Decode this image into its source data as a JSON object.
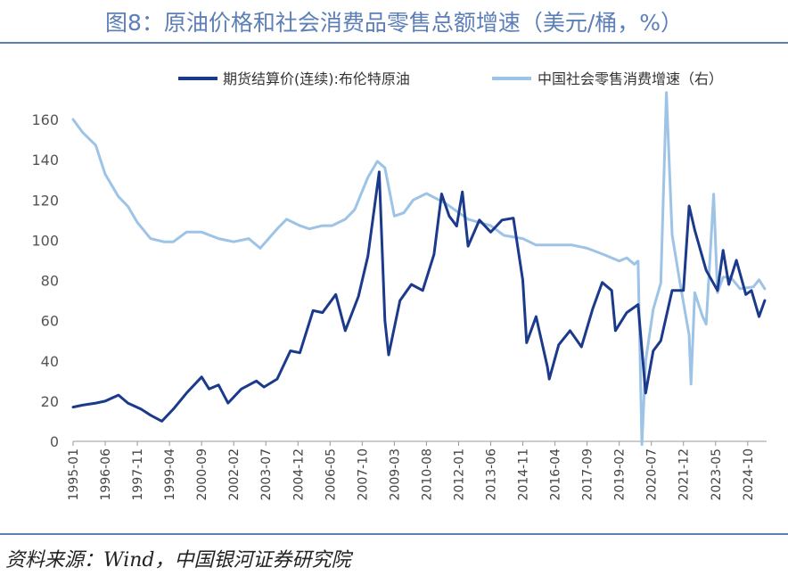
{
  "title": "图8：原油价格和社会消费品零售总额增速（美元/桶，%）",
  "source": "资料来源：Wind，中国银河证券研究院",
  "chart_data": {
    "type": "line",
    "title": "图8：原油价格和社会消费品零售总额增速（美元/桶，%）",
    "ylim": [
      0,
      160
    ],
    "yticks": [
      0,
      20,
      40,
      60,
      80,
      100,
      120,
      140,
      160
    ],
    "xticks": [
      "1995-01",
      "1996-06",
      "1997-11",
      "1999-04",
      "2000-09",
      "2002-02",
      "2003-07",
      "2004-12",
      "2006-05",
      "2007-10",
      "2009-03",
      "2010-08",
      "2012-01",
      "2013-06",
      "2014-11",
      "2016-04",
      "2017-09",
      "2019-02",
      "2020-07",
      "2021-12",
      "2023-05",
      "2024-10"
    ],
    "grid": false,
    "legend": "top",
    "series": [
      {
        "name": "期货结算价(连续):布伦特原油",
        "color": "#1b3a8c",
        "x": [
          "1995-01",
          "1995-06",
          "1996-01",
          "1996-06",
          "1997-01",
          "1997-06",
          "1998-01",
          "1998-06",
          "1998-12",
          "1999-06",
          "2000-01",
          "2000-09",
          "2001-01",
          "2001-06",
          "2001-11",
          "2002-06",
          "2003-02",
          "2003-06",
          "2004-01",
          "2004-08",
          "2005-01",
          "2005-08",
          "2006-01",
          "2006-08",
          "2007-01",
          "2007-08",
          "2008-01",
          "2008-07",
          "2008-10",
          "2008-12",
          "2009-06",
          "2009-12",
          "2010-06",
          "2010-12",
          "2011-04",
          "2011-08",
          "2011-12",
          "2012-03",
          "2012-06",
          "2012-12",
          "2013-06",
          "2013-12",
          "2014-06",
          "2014-11",
          "2015-01",
          "2015-06",
          "2015-12",
          "2016-01",
          "2016-06",
          "2016-12",
          "2017-06",
          "2017-12",
          "2018-05",
          "2018-10",
          "2018-12",
          "2019-06",
          "2019-12",
          "2020-04",
          "2020-08",
          "2020-12",
          "2021-06",
          "2021-12",
          "2022-03",
          "2022-06",
          "2022-12",
          "2023-06",
          "2023-09",
          "2023-12",
          "2024-04",
          "2024-09",
          "2024-12",
          "2025-04",
          "2025-07"
        ],
        "values": [
          17,
          18,
          19,
          20,
          23,
          19,
          16,
          13,
          10,
          16,
          24,
          32,
          26,
          28,
          19,
          26,
          30,
          27,
          31,
          45,
          44,
          65,
          64,
          73,
          55,
          72,
          92,
          134,
          60,
          43,
          70,
          78,
          75,
          93,
          123,
          112,
          107,
          124,
          97,
          110,
          104,
          110,
          111,
          80,
          49,
          62,
          37,
          31,
          48,
          55,
          47,
          66,
          79,
          75,
          55,
          64,
          68,
          24,
          45,
          50,
          75,
          75,
          117,
          105,
          85,
          75,
          95,
          78,
          90,
          73,
          75,
          62,
          70
        ]
      },
      {
        "name": "中国社会零售消费增速（右）",
        "color": "#9dc3e6",
        "x": [
          "1995-01",
          "1995-06",
          "1996-01",
          "1996-06",
          "1997-01",
          "1997-06",
          "1997-11",
          "1998-06",
          "1999-01",
          "1999-06",
          "2000-01",
          "2000-09",
          "2001-06",
          "2002-02",
          "2002-10",
          "2003-04",
          "2003-07",
          "2004-01",
          "2004-06",
          "2005-01",
          "2005-06",
          "2006-01",
          "2006-06",
          "2007-01",
          "2007-06",
          "2008-01",
          "2008-06",
          "2008-10",
          "2009-03",
          "2009-08",
          "2010-01",
          "2010-08",
          "2011-06",
          "2012-06",
          "2013-06",
          "2014-01",
          "2014-11",
          "2015-06",
          "2016-04",
          "2017-01",
          "2017-09",
          "2018-06",
          "2019-02",
          "2019-06",
          "2019-10",
          "2019-12",
          "2020-02",
          "2020-04",
          "2020-08",
          "2020-12",
          "2021-03",
          "2021-06",
          "2021-10",
          "2022-03",
          "2022-04",
          "2022-06",
          "2022-10",
          "2022-12",
          "2023-04",
          "2023-06",
          "2023-09",
          "2024-01",
          "2024-06",
          "2025-01",
          "2025-04",
          "2025-07"
        ],
        "values": [
          30.0,
          28.0,
          26.0,
          21.5,
          18.0,
          16.5,
          14.0,
          11.5,
          11.0,
          11.0,
          12.5,
          12.5,
          11.5,
          11.0,
          11.5,
          10.0,
          11.0,
          13.0,
          14.5,
          13.5,
          13.0,
          13.5,
          13.5,
          14.5,
          16.0,
          21.0,
          23.5,
          22.5,
          15.0,
          15.5,
          17.5,
          18.5,
          17.0,
          14.5,
          13.5,
          12.0,
          11.5,
          10.5,
          10.5,
          10.5,
          10.0,
          9.0,
          8.0,
          8.5,
          7.5,
          8.0,
          -20.5,
          -7.5,
          0.5,
          4.6,
          34.2,
          12.1,
          4.9,
          -3.5,
          -11.1,
          3.1,
          -0.5,
          -1.8,
          18.4,
          3.1,
          5.5,
          5.5,
          3.7,
          4.0,
          5.1,
          3.7
        ]
      }
    ],
    "right_axis": {
      "ylim": [
        -20,
        30
      ],
      "ticks_shown": false
    }
  }
}
